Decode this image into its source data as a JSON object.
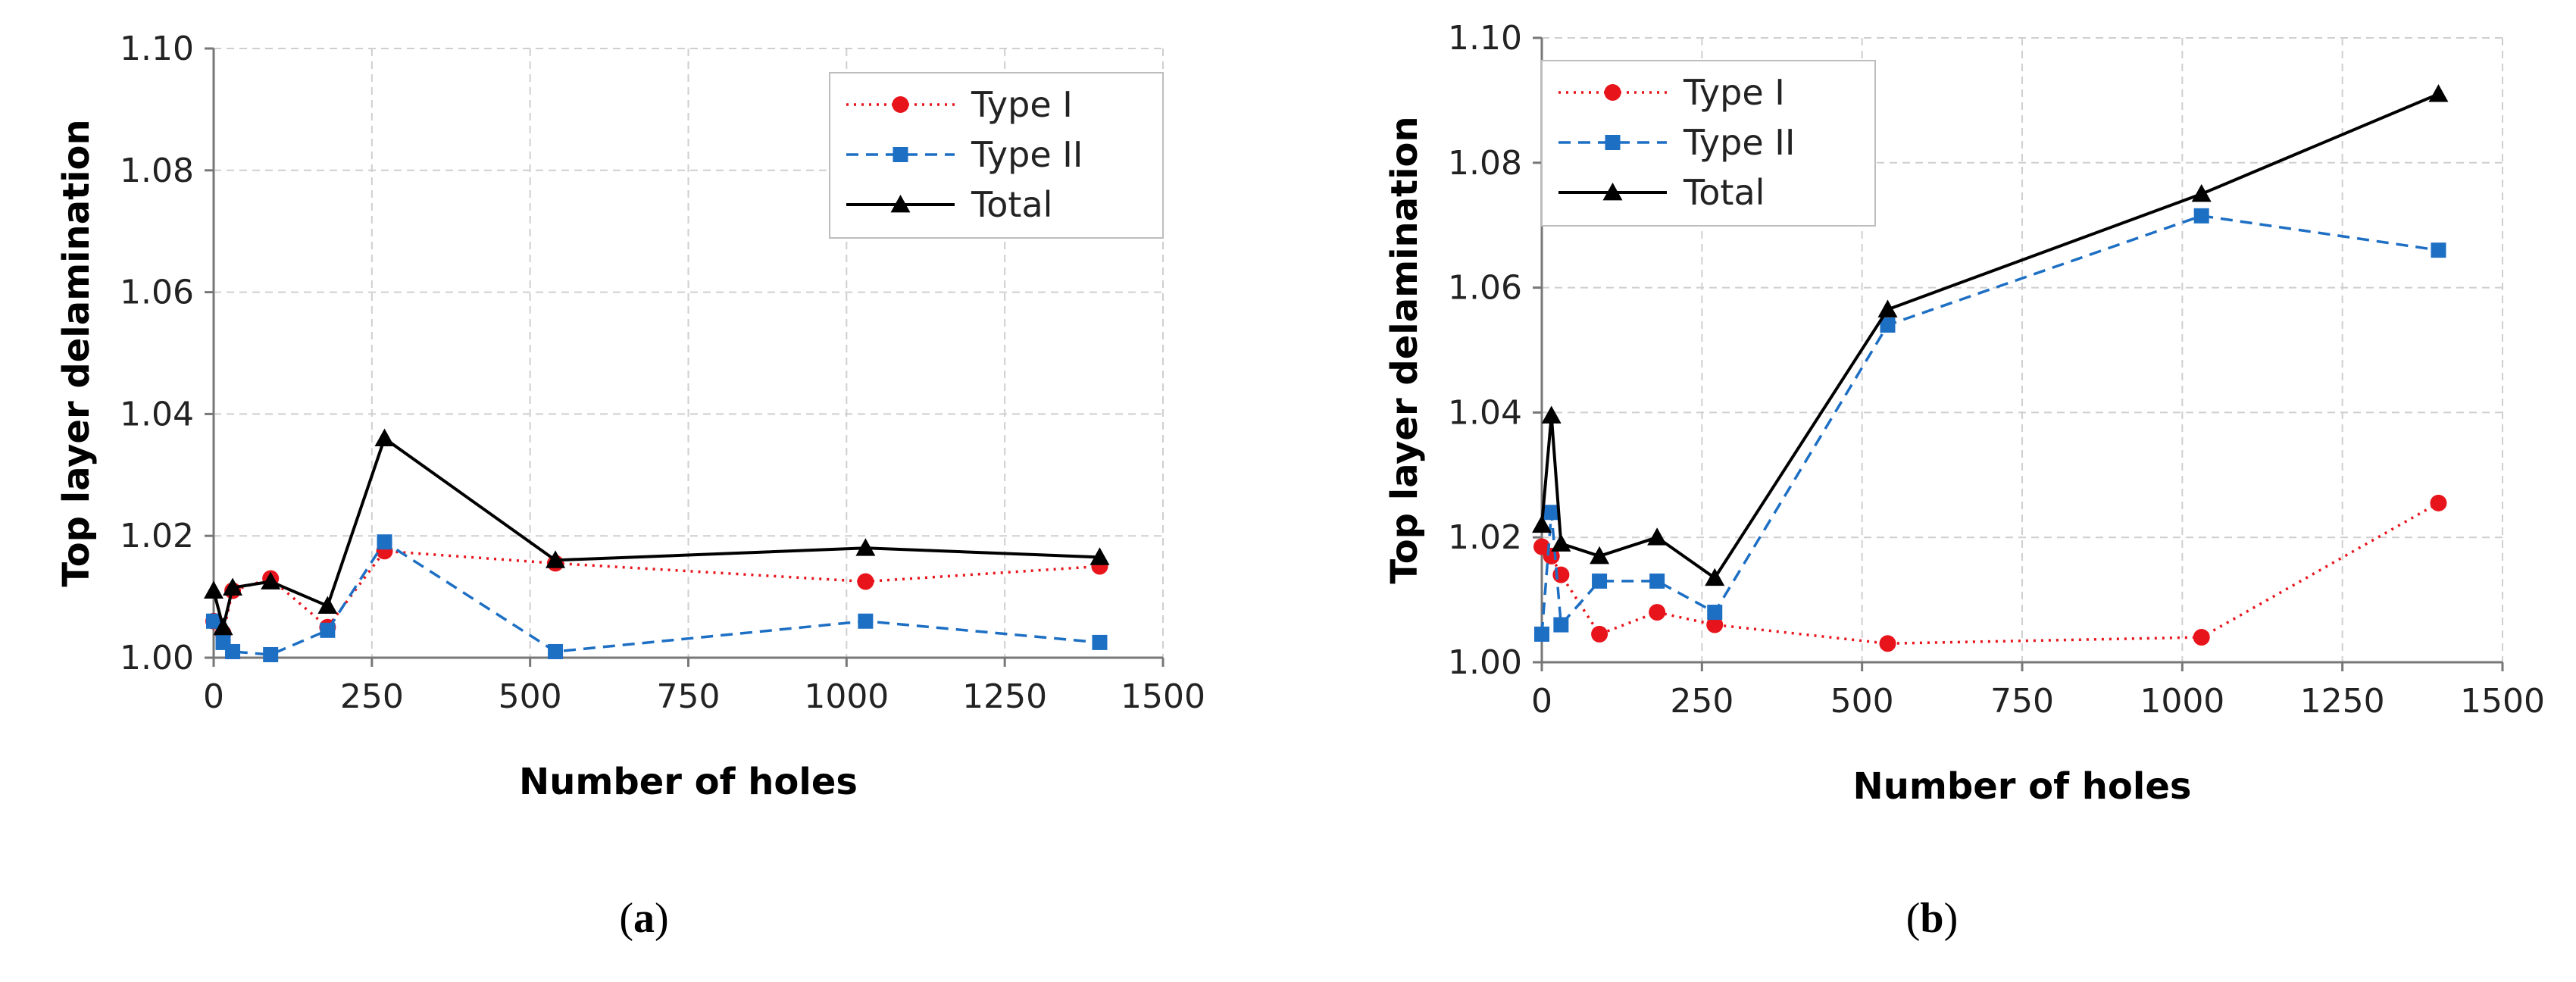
{
  "chart_data": [
    {
      "type": "line",
      "panel_label": "a",
      "xlabel": "Number of holes",
      "ylabel": "Top layer delamination",
      "xlim": [
        0,
        1500
      ],
      "ylim": [
        1.0,
        1.1
      ],
      "xticks": [
        0,
        250,
        500,
        750,
        1000,
        1250,
        1500
      ],
      "yticks": [
        1.0,
        1.02,
        1.04,
        1.06,
        1.08,
        1.1
      ],
      "xtick_labels": [
        "0",
        "250",
        "500",
        "750",
        "1000",
        "1250",
        "1500"
      ],
      "ytick_labels": [
        "1.00",
        "1.02",
        "1.04",
        "1.06",
        "1.08",
        "1.10"
      ],
      "grid": true,
      "legend_position": "top-right",
      "series": [
        {
          "name": "Type I",
          "color": "#e8141b",
          "marker": "circle",
          "dash": "dotted",
          "x": [
            0,
            15,
            30,
            90,
            180,
            270,
            540,
            1030,
            1400
          ],
          "y": [
            1.006,
            1.004,
            1.011,
            1.013,
            1.005,
            1.0175,
            1.0155,
            1.0125,
            1.015
          ]
        },
        {
          "name": "Type II",
          "color": "#1d6fc4",
          "marker": "square",
          "dash": "dashed",
          "x": [
            0,
            15,
            30,
            90,
            180,
            270,
            540,
            1030,
            1400
          ],
          "y": [
            1.006,
            1.0025,
            1.001,
            1.0005,
            1.0045,
            1.019,
            1.001,
            1.006,
            1.0025
          ]
        },
        {
          "name": "Total",
          "color": "#000000",
          "marker": "triangle",
          "dash": "solid",
          "x": [
            0,
            15,
            30,
            90,
            180,
            270,
            540,
            1030,
            1400
          ],
          "y": [
            1.011,
            1.005,
            1.0115,
            1.0125,
            1.0085,
            1.036,
            1.016,
            1.018,
            1.0165
          ]
        }
      ]
    },
    {
      "type": "line",
      "panel_label": "b",
      "xlabel": "Number of holes",
      "ylabel": "Top layer delamination",
      "xlim": [
        0,
        1500
      ],
      "ylim": [
        1.0,
        1.1
      ],
      "xticks": [
        0,
        250,
        500,
        750,
        1000,
        1250,
        1500
      ],
      "yticks": [
        1.0,
        1.02,
        1.04,
        1.06,
        1.08,
        1.1
      ],
      "xtick_labels": [
        "0",
        "250",
        "500",
        "750",
        "1000",
        "1250",
        "1500"
      ],
      "ytick_labels": [
        "1.00",
        "1.02",
        "1.04",
        "1.06",
        "1.08",
        "1.10"
      ],
      "grid": true,
      "legend_position": "top-left",
      "series": [
        {
          "name": "Type I",
          "color": "#e8141b",
          "marker": "circle",
          "dash": "dotted",
          "x": [
            0,
            15,
            30,
            90,
            180,
            270,
            540,
            1030,
            1400
          ],
          "y": [
            1.0185,
            1.017,
            1.014,
            1.0045,
            1.008,
            1.006,
            1.003,
            1.004,
            1.0255
          ]
        },
        {
          "name": "Type II",
          "color": "#1d6fc4",
          "marker": "square",
          "dash": "dashed",
          "x": [
            0,
            15,
            30,
            90,
            180,
            270,
            540,
            1030,
            1400
          ],
          "y": [
            1.0045,
            1.024,
            1.006,
            1.013,
            1.013,
            1.008,
            1.054,
            1.0715,
            1.066
          ]
        },
        {
          "name": "Total",
          "color": "#000000",
          "marker": "triangle",
          "dash": "solid",
          "x": [
            0,
            15,
            30,
            90,
            180,
            270,
            540,
            1030,
            1400
          ],
          "y": [
            1.022,
            1.0395,
            1.019,
            1.017,
            1.02,
            1.0135,
            1.0565,
            1.075,
            1.091
          ]
        }
      ]
    }
  ]
}
